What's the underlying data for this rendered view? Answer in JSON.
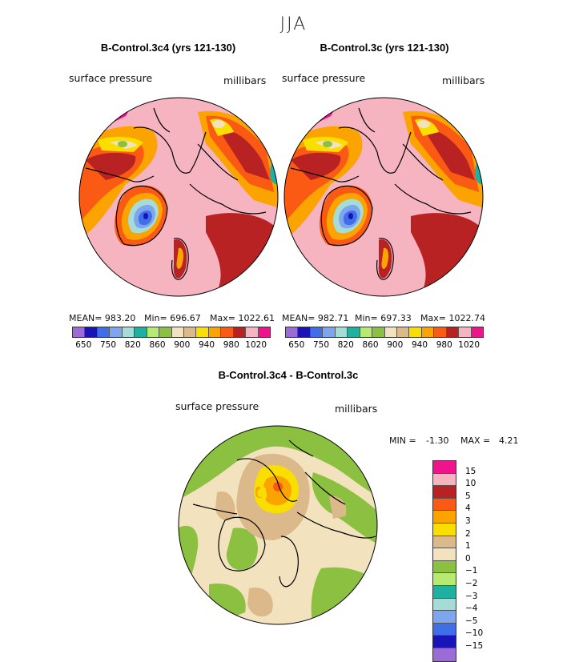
{
  "season": "JJA",
  "panel1": {
    "title": "B-Control.3c4 (yrs 121-130)",
    "field": "surface pressure",
    "units": "millibars",
    "mean": "MEAN= 983.20",
    "min": "Min= 696.67",
    "max": "Max= 1022.61"
  },
  "panel2": {
    "title": "B-Control.3c (yrs 121-130)",
    "field": "surface pressure",
    "units": "millibars",
    "mean": "MEAN= 982.71",
    "min": "Min= 697.33",
    "max": "Max= 1022.74"
  },
  "colorbar_top": {
    "colors": [
      "#9b6bd6",
      "#1a14b8",
      "#3f6ee8",
      "#7ea6ee",
      "#a6dcd8",
      "#20b0a0",
      "#b6ea70",
      "#8cc040",
      "#f3e2be",
      "#dcb98a",
      "#fade00",
      "#fba400",
      "#fb5a14",
      "#b82222",
      "#f6b3c0",
      "#f0148c"
    ],
    "labels": [
      "650",
      "750",
      "820",
      "860",
      "900",
      "940",
      "980",
      "1020"
    ]
  },
  "panel3": {
    "title": "B-Control.3c4 - B-Control.3c",
    "field": "surface pressure",
    "units": "millibars",
    "min_label": "MIN =",
    "min_value": "-1.30",
    "max_label": "MAX =",
    "max_value": "4.21"
  },
  "colorbar_diff": {
    "colors": [
      "#f0148c",
      "#f6b3c0",
      "#b82222",
      "#fb5a14",
      "#fba400",
      "#fade00",
      "#dcb98a",
      "#f3e2be",
      "#8cc040",
      "#b6ea70",
      "#20b0a0",
      "#a6dcd8",
      "#7ea6ee",
      "#3f6ee8",
      "#1a14b8",
      "#9b6bd6"
    ],
    "labels": [
      "15",
      "10",
      "5",
      "4",
      "3",
      "2",
      "1",
      "0",
      "−1",
      "−2",
      "−3",
      "−4",
      "−5",
      "−10",
      "−15"
    ]
  }
}
